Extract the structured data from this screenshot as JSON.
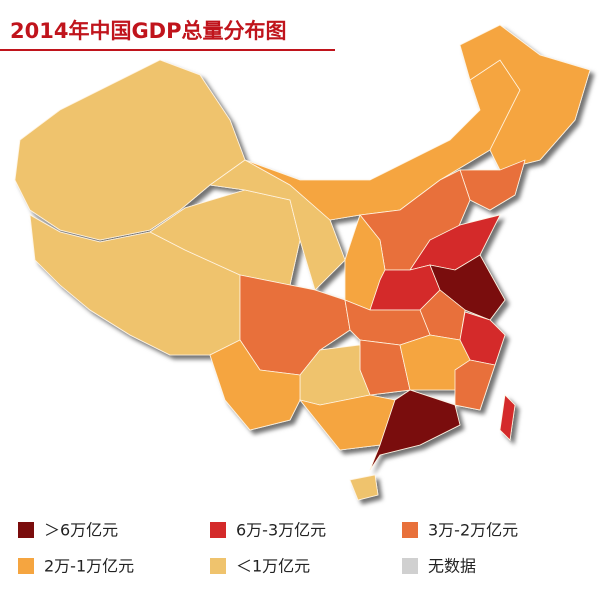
{
  "header": {
    "title": "2014年中国GDP总量分布图"
  },
  "legend": {
    "items": [
      {
        "label": "＞6万亿元",
        "color": "#7a0c0c"
      },
      {
        "label": "6万-3万亿元",
        "color": "#d42a2a"
      },
      {
        "label": "3万-2万亿元",
        "color": "#e8703a"
      },
      {
        "label": "2万-1万亿元",
        "color": "#f5a540"
      },
      {
        "label": "＜1万亿元",
        "color": "#efc36d"
      },
      {
        "label": "无数据",
        "color": "#d0d0d0"
      }
    ]
  }
}
